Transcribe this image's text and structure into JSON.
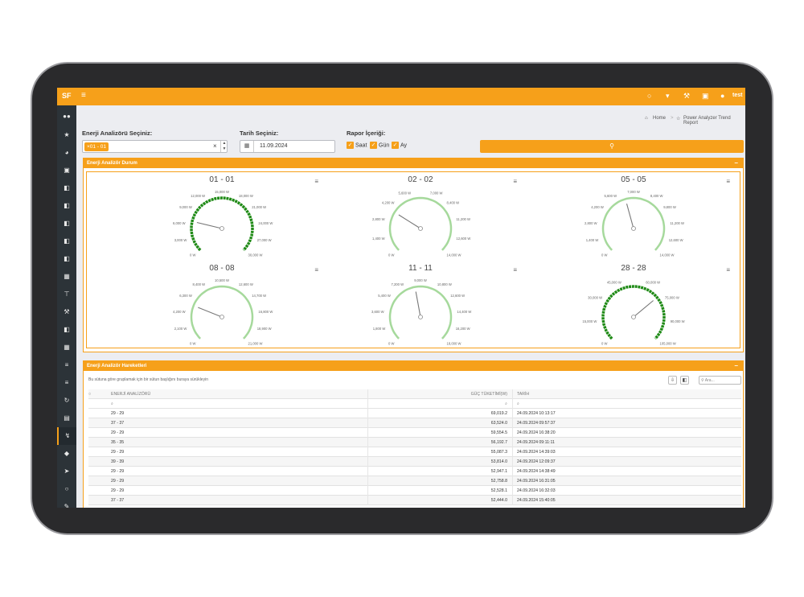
{
  "app": {
    "brand": "SF",
    "user": "test"
  },
  "breadcrumb": {
    "home": "Home",
    "current": "Power Analyzer Trend Report"
  },
  "filters": {
    "analyzer_label": "Enerji Analizörü Seçiniz:",
    "analyzer_tag": "01 - 01",
    "date_label": "Tarih Seçiniz:",
    "date_value": "11.09.2024",
    "report_label": "Rapor İçeriği:",
    "options": [
      "Saat",
      "Gün",
      "Ay"
    ]
  },
  "status_panel": {
    "title": "Enerji Analizör Durum",
    "gauges": [
      {
        "title": "01 - 01",
        "max": 30000,
        "value": 6500,
        "ticks": [
          "0 W",
          "3,000 W",
          "6,000 W",
          "9,000 W",
          "12,000 W",
          "15,000 W",
          "18,000 W",
          "21,000 W",
          "24,000 W",
          "27,000 W",
          "30,000 W"
        ]
      },
      {
        "title": "02 - 02",
        "max": 14000,
        "value": 4000,
        "ticks": [
          "0 W",
          "1,400 W",
          "2,800 W",
          "4,200 W",
          "5,600 W",
          "7,000 W",
          "8,400 W",
          "11,200 W",
          "12,600 W",
          "14,000 W"
        ]
      },
      {
        "title": "05 - 05",
        "max": 14000,
        "value": 6200,
        "ticks": [
          "0 W",
          "1,400 W",
          "2,800 W",
          "4,200 W",
          "5,600 W",
          "7,000 W",
          "8,400 W",
          "9,800 W",
          "11,200 W",
          "12,600 W",
          "14,000 W"
        ]
      },
      {
        "title": "08 - 08",
        "max": 21000,
        "value": 5200,
        "ticks": [
          "0 W",
          "2,100 W",
          "4,200 W",
          "6,300 W",
          "8,400 W",
          "10,500 W",
          "12,600 W",
          "14,700 W",
          "16,800 W",
          "18,900 W",
          "21,000 W"
        ]
      },
      {
        "title": "11 - 11",
        "max": 18000,
        "value": 8300,
        "ticks": [
          "0 W",
          "1,800 W",
          "3,600 W",
          "5,400 W",
          "7,200 W",
          "9,000 W",
          "10,800 W",
          "12,600 W",
          "14,400 W",
          "16,200 W",
          "18,000 W"
        ]
      },
      {
        "title": "28 - 28",
        "max": 105000,
        "value": 72000,
        "ticks": [
          "0 W",
          "15,000 W",
          "30,000 W",
          "45,000 W",
          "60,000 W",
          "75,000 W",
          "90,000 W",
          "105,000 W"
        ]
      }
    ]
  },
  "grid_panel": {
    "title": "Enerji Analizör Hareketleri",
    "group_hint": "Bu sütuna göre gruplamak için bir sütun başlığını buraya sürükleyin",
    "search_placeholder": "Ara...",
    "columns": [
      "ENERJİ ANALİZÖRÜ",
      "GÜÇ TÜKETİMİ(W)",
      "TARİH"
    ],
    "rows": [
      [
        "29 - 29",
        "69,019.2",
        "24.09.2024 10:13:17"
      ],
      [
        "37 - 37",
        "63,524.0",
        "24.09.2024 09:57:37"
      ],
      [
        "29 - 29",
        "59,554.5",
        "24.09.2024 16:38:20"
      ],
      [
        "35 - 35",
        "56,192.7",
        "24.09.2024 09:11:11"
      ],
      [
        "29 - 29",
        "55,087.3",
        "24.09.2024 14:39:03"
      ],
      [
        "39 - 39",
        "53,814.0",
        "24.09.2024 12:09:37"
      ],
      [
        "29 - 29",
        "52,947.1",
        "24.09.2024 14:38:49"
      ],
      [
        "29 - 29",
        "52,758.8",
        "24.09.2024 16:31:05"
      ],
      [
        "29 - 29",
        "52,528.1",
        "24.09.2024 16:32:03"
      ],
      [
        "37 - 37",
        "52,444.0",
        "24.09.2024 15:40:05"
      ]
    ]
  },
  "colors": {
    "accent": "#f6a01a",
    "gauge_dark": "#1f8a16",
    "gauge_light": "#a6d99c"
  }
}
